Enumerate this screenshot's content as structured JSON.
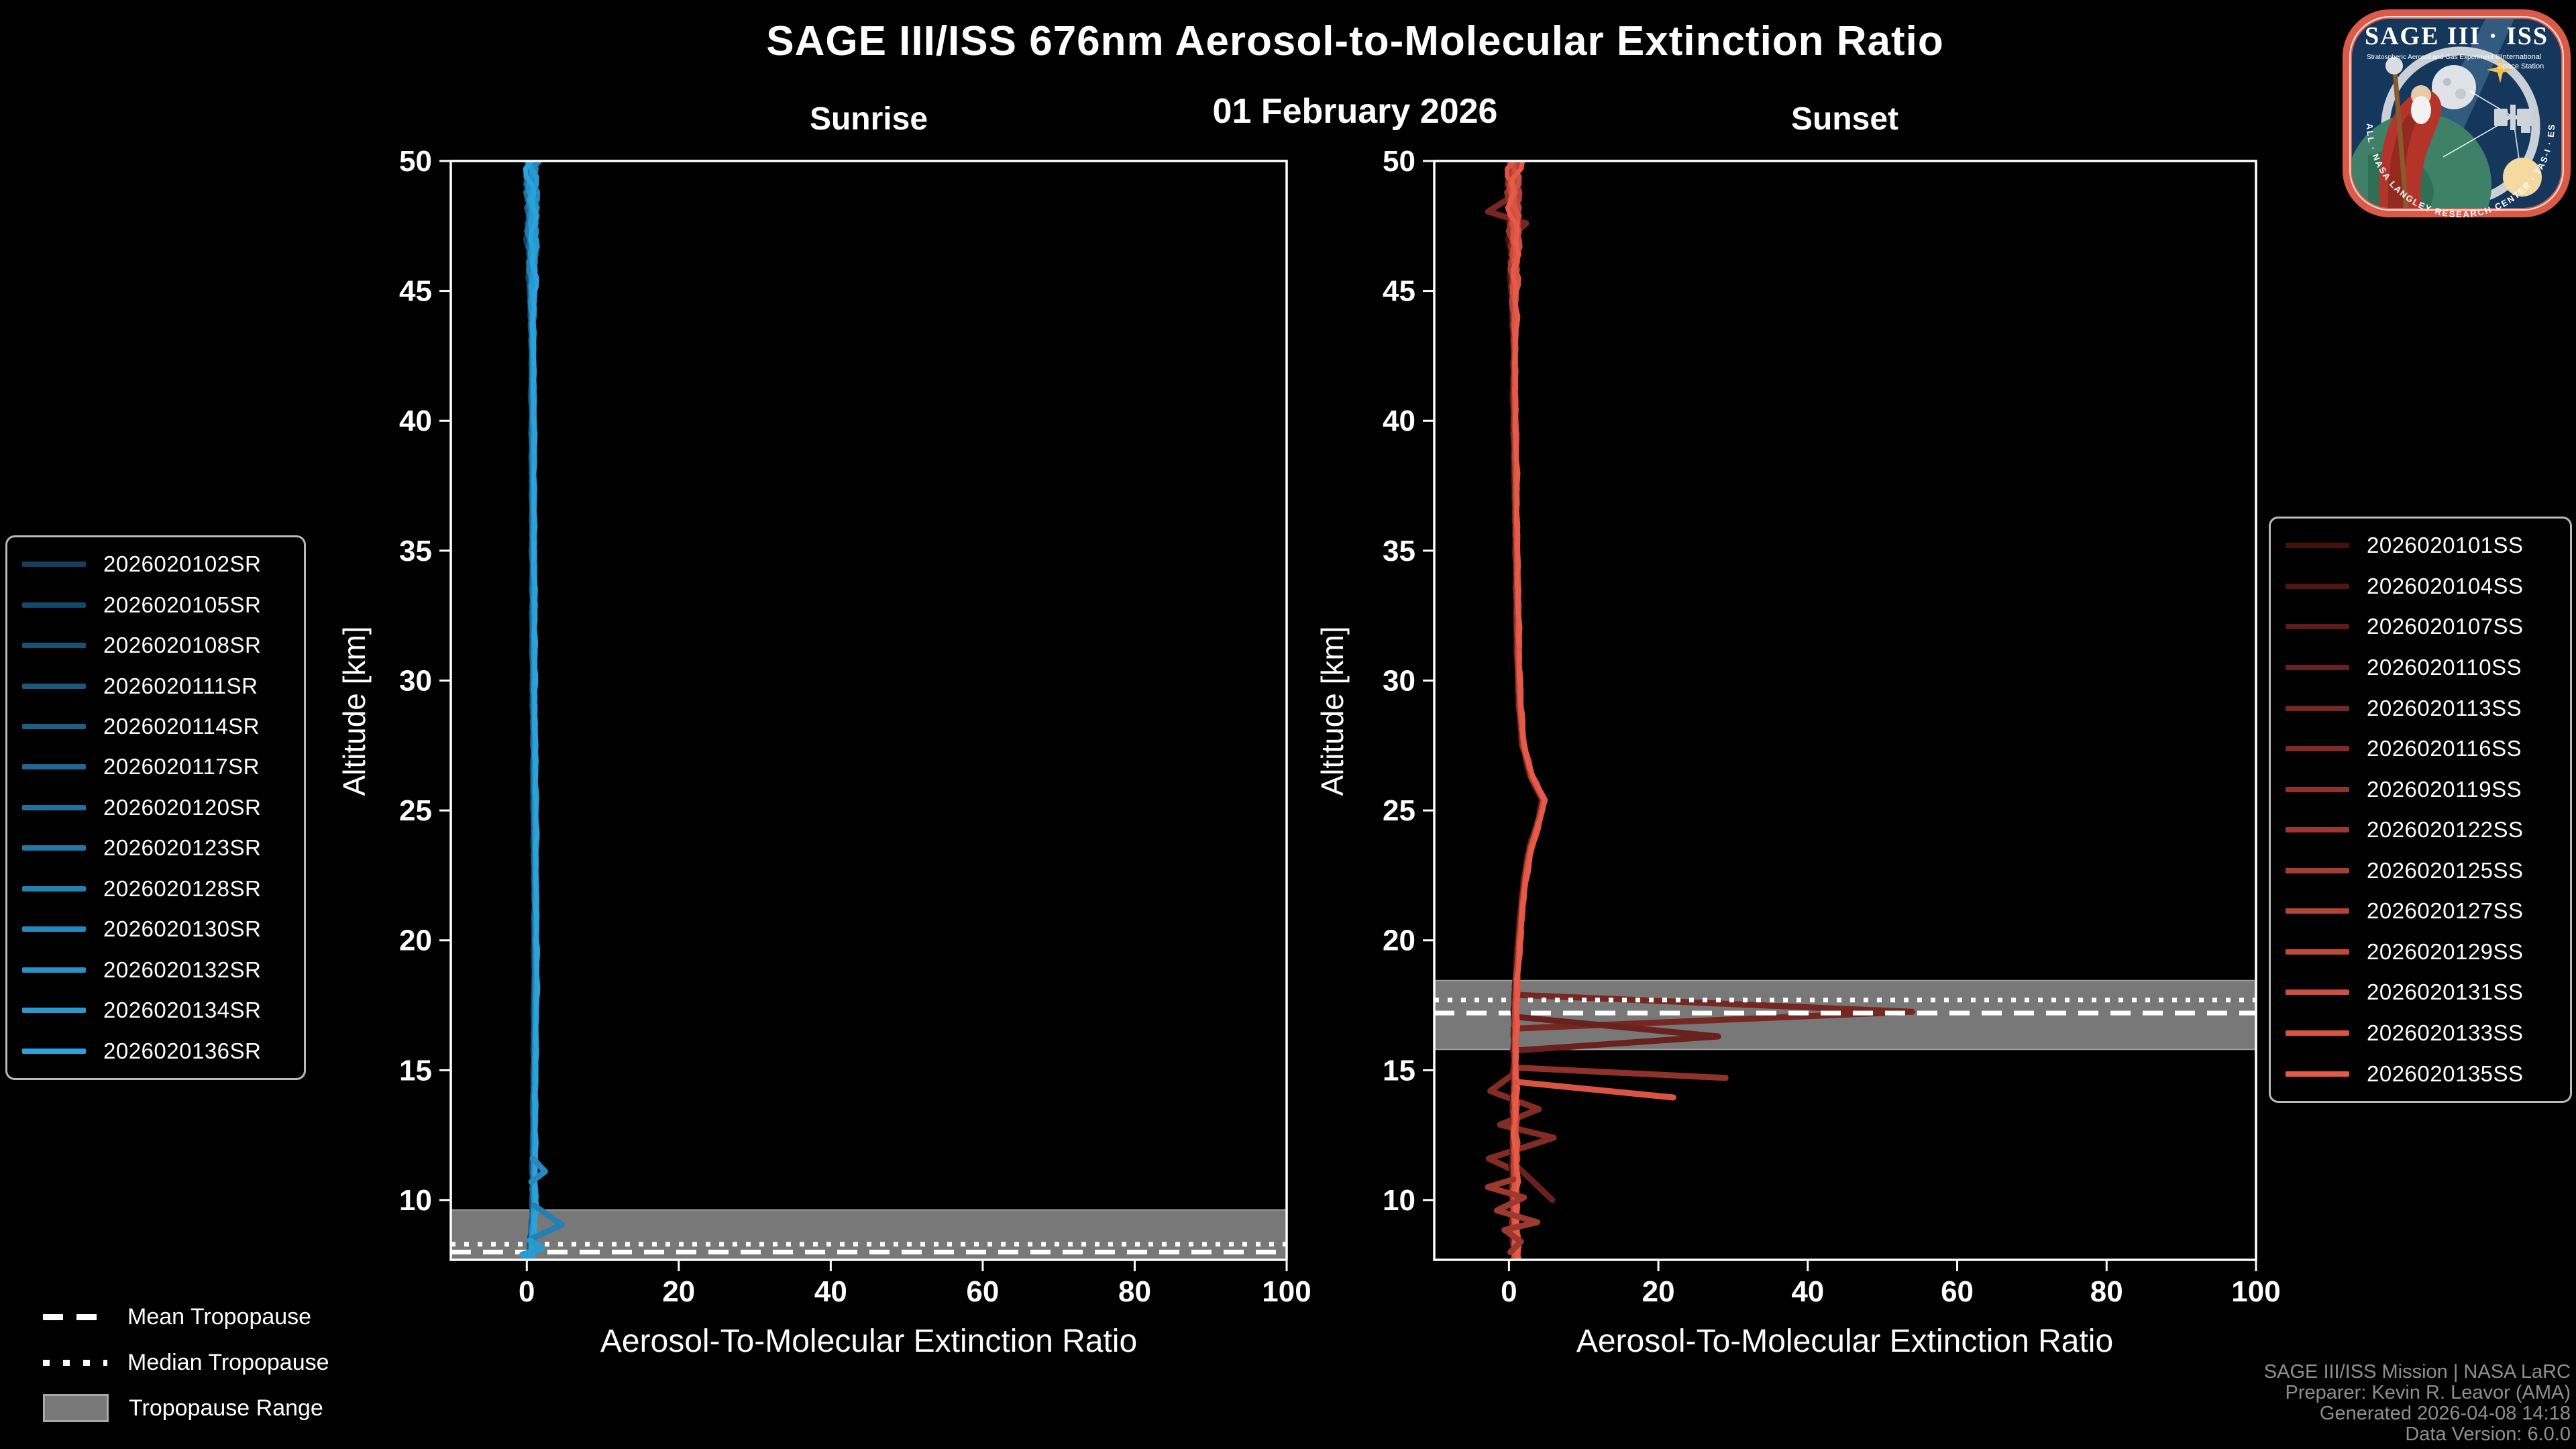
{
  "header": {
    "title": "SAGE III/ISS 676nm Aerosol-to-Molecular Extinction Ratio",
    "date": "01 February 2026"
  },
  "chart_data": [
    {
      "type": "line",
      "title": "Sunrise",
      "xlabel": "Aerosol-To-Molecular Extinction Ratio",
      "ylabel": "Altitude [km]",
      "xlim": [
        -10,
        100
      ],
      "ylim": [
        7.7,
        50
      ],
      "xticks": [
        0,
        20,
        40,
        60,
        80,
        100
      ],
      "yticks": [
        10,
        15,
        20,
        25,
        30,
        35,
        40,
        45,
        50
      ],
      "grid": false,
      "legend_position": "left",
      "color_start": "#153f5e",
      "color_end": "#2aa2dc",
      "events": [
        "2026020102SR",
        "2026020105SR",
        "2026020108SR",
        "2026020111SR",
        "2026020114SR",
        "2026020117SR",
        "2026020120SR",
        "2026020123SR",
        "2026020128SR",
        "2026020130SR",
        "2026020132SR",
        "2026020134SR",
        "2026020136SR"
      ],
      "base_profile": [
        [
          50,
          0.6
        ],
        [
          46,
          0.7
        ],
        [
          42,
          0.75
        ],
        [
          38,
          0.8
        ],
        [
          34,
          0.85
        ],
        [
          30,
          0.9
        ],
        [
          26,
          1.0
        ],
        [
          22,
          1.1
        ],
        [
          19,
          1.15
        ],
        [
          16,
          1.05
        ],
        [
          13,
          0.95
        ],
        [
          11,
          0.9
        ],
        [
          9.8,
          0.95
        ],
        [
          9,
          0.8
        ],
        [
          8.2,
          0.6
        ],
        [
          7.7,
          0.5
        ]
      ],
      "noise": {
        "base": 0.18,
        "upper_start": 43,
        "upper_rate": 0.14,
        "lower_start": 10.5,
        "lower_amp": 0.25
      },
      "features": [
        {
          "color_index": 8,
          "points": [
            [
              0.9,
              9.8
            ],
            [
              4.6,
              9.05
            ],
            [
              0.6,
              8.5
            ]
          ]
        },
        {
          "color_index": 9,
          "points": [
            [
              0.8,
              11.6
            ],
            [
              2.4,
              11.1
            ],
            [
              0.6,
              10.7
            ]
          ]
        },
        {
          "color_index": 11,
          "points": [
            [
              0.4,
              8.45
            ],
            [
              2.0,
              8.15
            ],
            [
              -0.6,
              7.9
            ],
            [
              1.0,
              7.72
            ]
          ]
        }
      ],
      "tropopause": {
        "mean": 8.0,
        "median": 8.3,
        "range": [
          7.7,
          9.62
        ]
      }
    },
    {
      "type": "line",
      "title": "Sunset",
      "xlabel": "Aerosol-To-Molecular Extinction Ratio",
      "ylabel": "Altitude [km]",
      "xlim": [
        -10,
        100
      ],
      "ylim": [
        7.7,
        50
      ],
      "xticks": [
        0,
        20,
        40,
        60,
        80,
        100
      ],
      "yticks": [
        10,
        15,
        20,
        25,
        30,
        35,
        40,
        45,
        50
      ],
      "grid": false,
      "legend_position": "right",
      "color_start": "#451010",
      "color_end": "#e65a48",
      "events": [
        "2026020101SS",
        "2026020104SS",
        "2026020107SS",
        "2026020110SS",
        "2026020113SS",
        "2026020116SS",
        "2026020119SS",
        "2026020122SS",
        "2026020125SS",
        "2026020127SS",
        "2026020129SS",
        "2026020131SS",
        "2026020133SS",
        "2026020135SS"
      ],
      "base_profile": [
        [
          50,
          0.7
        ],
        [
          48.5,
          0.55
        ],
        [
          47,
          0.75
        ],
        [
          45,
          0.65
        ],
        [
          43,
          0.75
        ],
        [
          41,
          0.7
        ],
        [
          39,
          0.8
        ],
        [
          37,
          0.9
        ],
        [
          35,
          1.0
        ],
        [
          33,
          1.1
        ],
        [
          31,
          1.2
        ],
        [
          29,
          1.45
        ],
        [
          27.5,
          1.9
        ],
        [
          26.3,
          3.0
        ],
        [
          25.4,
          4.6
        ],
        [
          24.7,
          4.1
        ],
        [
          23.5,
          2.8
        ],
        [
          22.5,
          2.2
        ],
        [
          21.5,
          1.8
        ],
        [
          20.5,
          1.5
        ],
        [
          19.5,
          1.25
        ],
        [
          18.5,
          1.0
        ],
        [
          17.5,
          0.85
        ],
        [
          16,
          0.78
        ],
        [
          14.5,
          0.82
        ],
        [
          13,
          0.72
        ],
        [
          11.5,
          0.78
        ],
        [
          10,
          0.72
        ],
        [
          9,
          0.8
        ],
        [
          8,
          0.9
        ],
        [
          7.7,
          1.0
        ]
      ],
      "noise": {
        "base": 0.2,
        "upper_start": 43,
        "upper_rate": 0.16,
        "lower_start": 15,
        "lower_amp": 0.4
      },
      "features": [
        {
          "color_index": 4,
          "points": [
            [
              1.0,
              17.9
            ],
            [
              54,
              17.25
            ],
            [
              0.6,
              16.6
            ]
          ]
        },
        {
          "color_index": 3,
          "points": [
            [
              1.0,
              17.05
            ],
            [
              28,
              16.3
            ],
            [
              0.5,
              15.75
            ]
          ]
        },
        {
          "color_index": 5,
          "points": [
            [
              0.6,
              14.85
            ],
            [
              -2.5,
              14.2
            ],
            [
              4.0,
              13.5
            ],
            [
              -1.2,
              12.9
            ],
            [
              6.0,
              12.4
            ],
            [
              -2.7,
              11.6
            ],
            [
              1.0,
              11.1
            ]
          ]
        },
        {
          "color_index": 6,
          "points": [
            [
              0.8,
              15.1
            ],
            [
              29,
              14.7
            ]
          ]
        },
        {
          "color_index": 12,
          "points": [
            [
              0.9,
              14.55
            ],
            [
              22,
              13.95
            ]
          ]
        },
        {
          "color_index": 3,
          "points": [
            [
              0.9,
              11.35
            ],
            [
              5.8,
              10.0
            ]
          ]
        },
        {
          "color_index": 7,
          "points": [
            [
              0.6,
              10.8
            ],
            [
              -2.8,
              10.5
            ],
            [
              2.0,
              10.1
            ],
            [
              -1.6,
              9.6
            ],
            [
              3.8,
              9.15
            ],
            [
              -0.6,
              8.85
            ],
            [
              1.6,
              8.4
            ],
            [
              0.2,
              8.0
            ]
          ]
        },
        {
          "color_index": 4,
          "points": [
            [
              0.8,
              48.7
            ],
            [
              -2.8,
              48.05
            ],
            [
              2.3,
              47.6
            ],
            [
              0.3,
              47.1
            ]
          ]
        }
      ],
      "tropopause": {
        "mean": 17.2,
        "median": 17.7,
        "range": [
          15.8,
          18.45
        ]
      }
    }
  ],
  "tropopause_legend": [
    {
      "label": "Mean Tropopause",
      "style": "dashed"
    },
    {
      "label": "Median Tropopause",
      "style": "dotted"
    },
    {
      "label": "Tropopause Range",
      "style": "band"
    }
  ],
  "credits": [
    "SAGE III/ISS Mission | NASA LaRC",
    "Preparer: Kevin R. Leavor (AMA)",
    "Generated 2026-04-08 14:18",
    "Data Version: 6.0.0"
  ],
  "logo": {
    "title": "SAGE III · ISS",
    "subtitle_left": "Stratospheric Aerosol and Gas Experiment III",
    "subtitle_right_1": "International",
    "subtitle_right_2": "Space Station",
    "arc_text": "BALL · NASA LANGLEY RESEARCH CENTER · TAS-I · ESA"
  },
  "colors": {
    "background": "#000000",
    "frame": "#ffffff",
    "band": "#787878",
    "band_edge": "#9e9e9e",
    "credits_text": "#8f8f8f",
    "legend_border": "#b9b9b9"
  }
}
